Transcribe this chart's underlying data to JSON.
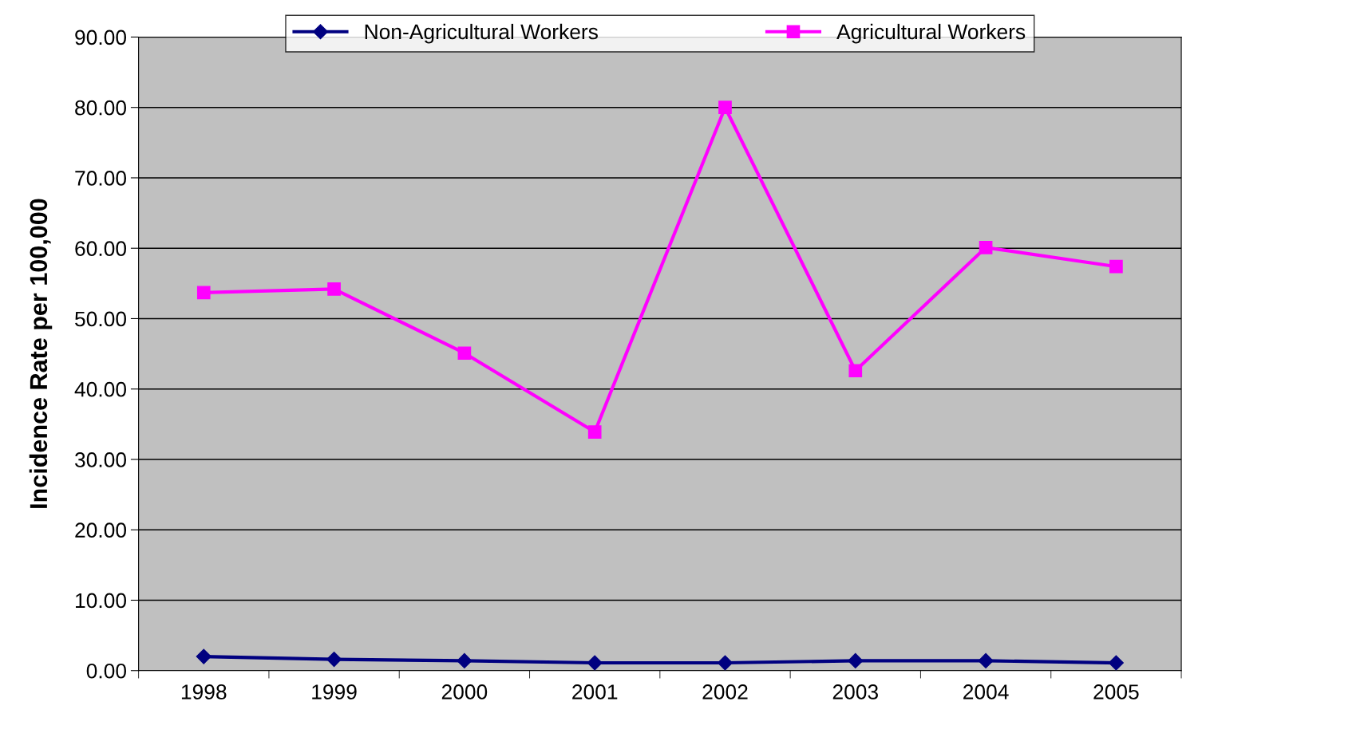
{
  "chart_data": {
    "type": "line",
    "ylabel": "Incidence Rate per 100,000",
    "categories": [
      "1998",
      "1999",
      "2000",
      "2001",
      "2002",
      "2003",
      "2004",
      "2005"
    ],
    "series": [
      {
        "name": "Non-Agricultural Workers",
        "color": "#000080",
        "marker": "diamond",
        "values": [
          2.0,
          1.6,
          1.4,
          1.1,
          1.1,
          1.4,
          1.4,
          1.1
        ]
      },
      {
        "name": "Agricultural Workers",
        "color": "#ff00ff",
        "marker": "square",
        "values": [
          53.7,
          54.2,
          45.1,
          33.9,
          80.0,
          42.6,
          60.1,
          57.4
        ]
      }
    ],
    "ylim": [
      0,
      90
    ],
    "yticks": [
      {
        "value": 0,
        "label": "0.00"
      },
      {
        "value": 10,
        "label": "10.00"
      },
      {
        "value": 20,
        "label": "20.00"
      },
      {
        "value": 30,
        "label": "30.00"
      },
      {
        "value": 40,
        "label": "40.00"
      },
      {
        "value": 50,
        "label": "50.00"
      },
      {
        "value": 60,
        "label": "60.00"
      },
      {
        "value": 70,
        "label": "70.00"
      },
      {
        "value": 80,
        "label": "80.00"
      },
      {
        "value": 90,
        "label": "90.00"
      }
    ],
    "grid": "y",
    "legend": "top",
    "line_style": "solid"
  }
}
